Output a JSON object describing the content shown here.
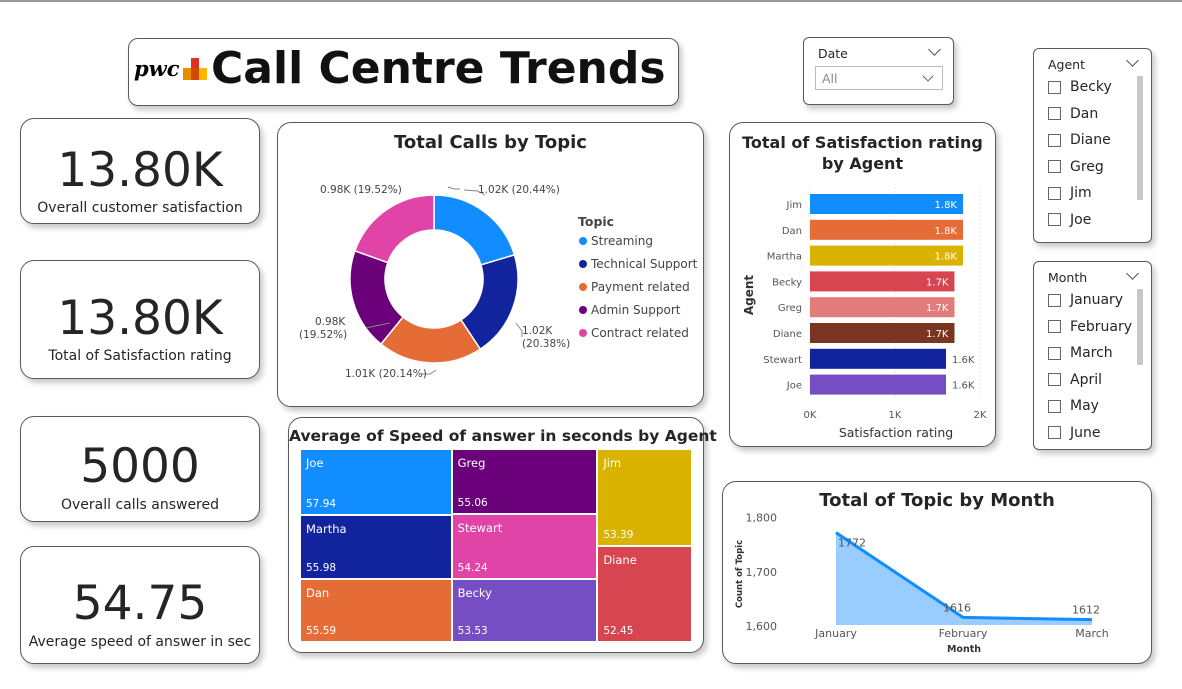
{
  "header": {
    "logo_text": "pwc",
    "title": "Call Centre Trends"
  },
  "kpis": [
    {
      "value": "13.80K",
      "label": "Overall customer satisfaction"
    },
    {
      "value": "13.80K",
      "label": "Total of Satisfaction rating"
    },
    {
      "value": "5000",
      "label": "Overall calls answered"
    },
    {
      "value": "54.75",
      "label": "Average speed of answer in sec"
    }
  ],
  "date_slicer": {
    "title": "Date",
    "selected": "All"
  },
  "agent_slicer": {
    "title": "Agent",
    "items": [
      "Becky",
      "Dan",
      "Diane",
      "Greg",
      "Jim",
      "Joe"
    ]
  },
  "month_slicer": {
    "title": "Month",
    "items": [
      "January",
      "February",
      "March",
      "April",
      "May",
      "June"
    ]
  },
  "colors": {
    "blue": "#118DFF",
    "navy": "#12239E",
    "orange": "#E66C37",
    "purple": "#6B007B",
    "pink": "#E044A7",
    "violet": "#744EC2",
    "gold": "#D9B300",
    "red": "#D64550",
    "salmon": "#E17C7A",
    "brown": "#7A3520"
  },
  "chart_data": [
    {
      "type": "pie",
      "title": "Total Calls by Topic",
      "legend_title": "Topic",
      "legend_position": "right",
      "slices": [
        {
          "name": "Streaming",
          "value": 1.02,
          "label": "1.02K (20.44%)",
          "color": "#118DFF"
        },
        {
          "name": "Technical Support",
          "value": 1.02,
          "label": "1.02K (20.38%)",
          "color": "#12239E"
        },
        {
          "name": "Payment related",
          "value": 1.01,
          "label": "1.01K (20.14%)",
          "color": "#E66C37"
        },
        {
          "name": "Admin Support",
          "value": 0.98,
          "label": "0.98K (19.52%)",
          "color": "#6B007B"
        },
        {
          "name": "Contract related",
          "value": 0.98,
          "label": "0.98K (19.52%)",
          "color": "#E044A7"
        }
      ]
    },
    {
      "type": "bar",
      "title": "Total of Satisfaction rating by Agent",
      "orientation": "horizontal",
      "xlabel": "Satisfaction rating",
      "ylabel": "Agent",
      "xlim": [
        0,
        2000
      ],
      "xticks": [
        "0K",
        "1K",
        "2K"
      ],
      "categories": [
        "Jim",
        "Dan",
        "Martha",
        "Becky",
        "Greg",
        "Diane",
        "Stewart",
        "Joe"
      ],
      "values": [
        1800,
        1800,
        1800,
        1700,
        1700,
        1700,
        1600,
        1600
      ],
      "labels": [
        "1.8K",
        "1.8K",
        "1.8K",
        "1.7K",
        "1.7K",
        "1.7K",
        "1.6K",
        "1.6K"
      ],
      "colors": [
        "#118DFF",
        "#E66C37",
        "#D9B300",
        "#D64550",
        "#E17C7A",
        "#7A3520",
        "#12239E",
        "#744EC2"
      ]
    },
    {
      "type": "treemap",
      "title": "Average of Speed of answer in seconds by Agent",
      "items": [
        {
          "name": "Joe",
          "value": 57.94,
          "label": "57.94",
          "color": "#118DFF"
        },
        {
          "name": "Martha",
          "value": 55.98,
          "label": "55.98",
          "color": "#12239E"
        },
        {
          "name": "Dan",
          "value": 55.59,
          "label": "55.59",
          "color": "#E66C37"
        },
        {
          "name": "Greg",
          "value": 55.06,
          "label": "55.06",
          "color": "#6B007B"
        },
        {
          "name": "Stewart",
          "value": 54.24,
          "label": "54.24",
          "color": "#E044A7"
        },
        {
          "name": "Becky",
          "value": 53.53,
          "label": "53.53",
          "color": "#744EC2"
        },
        {
          "name": "Jim",
          "value": 53.39,
          "label": "53.39",
          "color": "#D9B300"
        },
        {
          "name": "Diane",
          "value": 52.45,
          "label": "52.45",
          "color": "#D64550"
        }
      ]
    },
    {
      "type": "area",
      "title": "Total of Topic by Month",
      "xlabel": "Month",
      "ylabel": "Count of Topic",
      "categories": [
        "January",
        "February",
        "March"
      ],
      "values": [
        1772,
        1616,
        1612
      ],
      "labels": [
        "1772",
        "1616",
        "1612"
      ],
      "ylim": [
        1580,
        1810
      ],
      "yticks": [
        1600,
        1700,
        1800
      ],
      "ytick_labels": [
        "1,600",
        "1,700",
        "1,800"
      ]
    }
  ]
}
